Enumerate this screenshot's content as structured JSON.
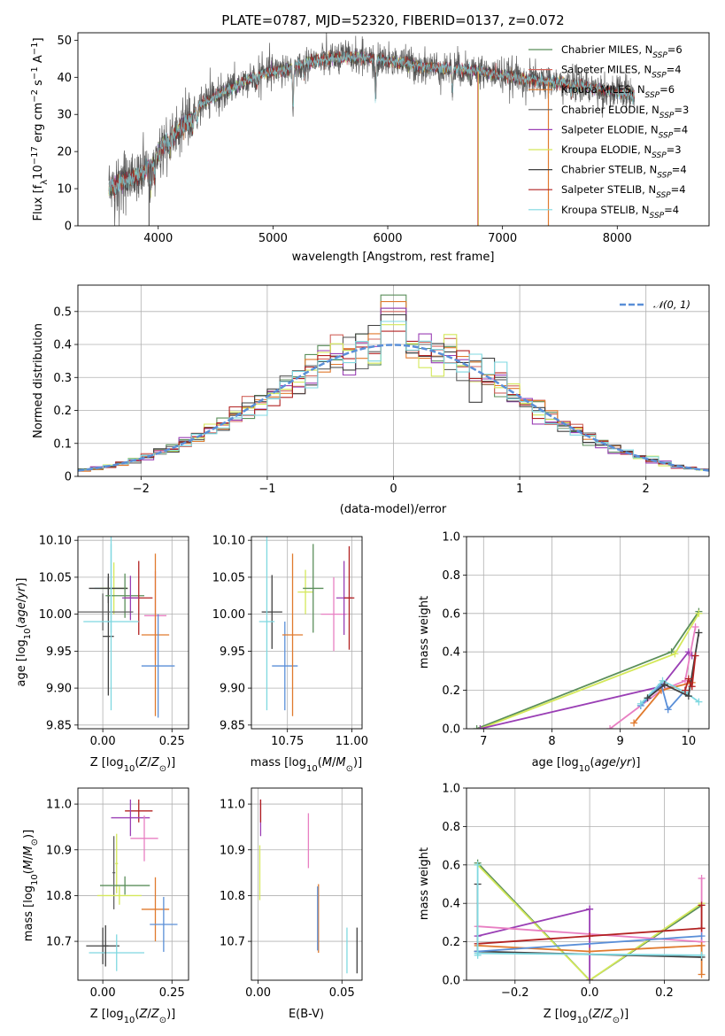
{
  "chart_data": [
    {
      "id": "spectrum",
      "type": "line",
      "title": "PLATE=0787, MJD=52320, FIBERID=0137, z=0.072",
      "xlabel": "wavelength [Angstrom, rest frame]",
      "ylabel": "Flux [f$_\\lambda$10$^{-17}$ erg cm$^{-2}$ s$^{-1}$ A$^{-1}$]",
      "xlim": [
        3300,
        8800
      ],
      "ylim": [
        0,
        52
      ],
      "xticks": [
        4000,
        5000,
        6000,
        7000,
        8000
      ],
      "yticks": [
        0,
        10,
        20,
        30,
        40,
        50
      ],
      "grid": false,
      "legend_position": "top-right",
      "data_range": [
        3570,
        8150
      ],
      "continuum": {
        "x": [
          3570,
          3700,
          3850,
          3950,
          4050,
          4200,
          4350,
          4500,
          4700,
          4900,
          5100,
          5300,
          5500,
          5700,
          5900,
          6100,
          6300,
          6500,
          6700,
          6900,
          7100,
          7300,
          7500,
          7700,
          7900,
          8150
        ],
        "y": [
          10,
          12,
          14,
          17,
          22,
          26,
          32,
          35,
          38,
          41,
          42,
          44,
          45,
          45.5,
          45,
          44,
          43,
          42.5,
          42,
          41,
          40,
          39,
          38.5,
          37.5,
          36.5,
          35
        ]
      },
      "absorption_lines": [
        {
          "x": 3934,
          "depth": 6
        },
        {
          "x": 3969,
          "depth": 5
        },
        {
          "x": 4102,
          "depth": 3
        },
        {
          "x": 4300,
          "depth": 4
        },
        {
          "x": 4340,
          "depth": 3
        },
        {
          "x": 4861,
          "depth": 3
        },
        {
          "x": 5175,
          "depth": 10
        },
        {
          "x": 5270,
          "depth": 3
        },
        {
          "x": 5893,
          "depth": 10
        },
        {
          "x": 6563,
          "depth": 5
        },
        {
          "x": 7600,
          "depth": 3
        }
      ],
      "drop_lines": [
        {
          "series": "Kroupa ELODIE",
          "x": 6790
        },
        {
          "series": "Salpeter MILES",
          "x": 6785
        },
        {
          "series": "Kroupa MILES",
          "x": 7400
        },
        {
          "series": "Chabrier ELODIE",
          "x": 3920
        }
      ],
      "series": [
        {
          "name": "Chabrier MILES",
          "nssp": "6",
          "color": "#5b8f5b"
        },
        {
          "name": "Salpeter MILES",
          "nssp": "4",
          "color": "#d1655d"
        },
        {
          "name": "Kroupa MILES",
          "nssp": "6",
          "color": "#e07a2e"
        },
        {
          "name": "Chabrier ELODIE",
          "nssp": "3",
          "color": "#606060"
        },
        {
          "name": "Salpeter ELODIE",
          "nssp": "4",
          "color": "#9a3fb5"
        },
        {
          "name": "Kroupa ELODIE",
          "nssp": "3",
          "color": "#d4e85a"
        },
        {
          "name": "Chabrier STELIB",
          "nssp": "4",
          "color": "#404040"
        },
        {
          "name": "Salpeter STELIB",
          "nssp": "4",
          "color": "#b22222"
        },
        {
          "name": "Kroupa STELIB",
          "nssp": "4",
          "color": "#7fd8e0"
        }
      ],
      "legend_labels": [
        {
          "prefix": "Chabrier MILES, N",
          "sub": "SSP",
          "suffix": "=6"
        },
        {
          "prefix": "Salpeter MILES, N",
          "sub": "SSP",
          "suffix": "=4"
        },
        {
          "prefix": "Kroupa MILES, N",
          "sub": "SSP",
          "suffix": "=6"
        },
        {
          "prefix": "Chabrier ELODIE, N",
          "sub": "SSP",
          "suffix": "=3"
        },
        {
          "prefix": "Salpeter ELODIE, N",
          "sub": "SSP",
          "suffix": "=4"
        },
        {
          "prefix": "Kroupa ELODIE, N",
          "sub": "SSP",
          "suffix": "=3"
        },
        {
          "prefix": "Chabrier STELIB, N",
          "sub": "SSP",
          "suffix": "=4"
        },
        {
          "prefix": "Salpeter STELIB, N",
          "sub": "SSP",
          "suffix": "=4"
        },
        {
          "prefix": "Kroupa STELIB, N",
          "sub": "SSP",
          "suffix": "=4"
        }
      ]
    },
    {
      "id": "residuals",
      "type": "line",
      "xlabel": "(data-model)/error",
      "ylabel": "Normed distribution",
      "xlim": [
        -2.5,
        2.5
      ],
      "ylim": [
        0,
        0.58
      ],
      "xticks": [
        -2,
        -1,
        0,
        1,
        2
      ],
      "yticks": [
        0.0,
        0.1,
        0.2,
        0.3,
        0.4,
        0.5
      ],
      "grid": true,
      "legend_position": "top-right",
      "legend": "$\\mathcal{N}(0,1)$",
      "gaussian": {
        "mean": 0,
        "sigma": 1,
        "color": "#5a8fd8"
      },
      "histogram": {
        "bin_width": 0.1,
        "bin_start": -2.5,
        "bin_end": 2.5,
        "note_series": "9 models, same colors as spectrum"
      },
      "peak_values": {
        "x": [
          0.0,
          0.1,
          0.3
        ],
        "y": [
          0.55,
          0.51,
          0.48
        ]
      }
    },
    {
      "id": "age_vs_Z",
      "type": "scatter",
      "xlabel": "Z [log$_{10}$($Z/Z_\\odot$)]",
      "ylabel": "age  [log$_{10}$($age/yr$)]",
      "xlim": [
        -0.09,
        0.31
      ],
      "ylim": [
        9.845,
        10.105
      ],
      "xticks": [
        "0.00",
        "0.25"
      ],
      "yticks": [
        "9.85",
        "9.90",
        "9.95",
        "10.00",
        "10.05",
        "10.10"
      ],
      "grid": true,
      "points": [
        {
          "x": 0.03,
          "y": 10.035,
          "xerr": 0.06,
          "yerr": 0.06,
          "color": "#7fd8e0"
        },
        {
          "x": 0.04,
          "y": 10.035,
          "xerr": 0.05,
          "yerr": 0.035,
          "color": "#d4e85a"
        },
        {
          "x": 0.02,
          "y": 10.035,
          "xerr": 0.07,
          "yerr": 0.02,
          "color": "#404040"
        },
        {
          "x": 0.02,
          "y": 9.97,
          "xerr": 0.02,
          "yerr": 0.08,
          "color": "#404040"
        },
        {
          "x": 0.08,
          "y": 10.025,
          "xerr": 0.07,
          "yerr": 0.03,
          "color": "#5b8f5b"
        },
        {
          "x": 0.13,
          "y": 10.022,
          "xerr": 0.05,
          "yerr": 0.05,
          "color": "#b22222"
        },
        {
          "x": 0.1,
          "y": 10.022,
          "xerr": 0.03,
          "yerr": 0.03,
          "color": "#9a3fb5"
        },
        {
          "x": 0.0,
          "y": 10.003,
          "xerr": 0.11,
          "yerr": 0.025,
          "color": "#606060"
        },
        {
          "x": 0.03,
          "y": 9.99,
          "xerr": 0.1,
          "yerr": 0.12,
          "color": "#7fd8e0"
        },
        {
          "x": 0.19,
          "y": 9.998,
          "xerr": 0.04,
          "yerr": 0.06,
          "color": "#e87fc2"
        },
        {
          "x": 0.19,
          "y": 9.972,
          "xerr": 0.05,
          "yerr": 0.11,
          "color": "#e07a2e"
        },
        {
          "x": 0.2,
          "y": 9.93,
          "xerr": 0.06,
          "yerr": 0.07,
          "color": "#5a8fd8"
        }
      ]
    },
    {
      "id": "age_vs_mass",
      "type": "scatter",
      "xlabel": "mass [log$_{10}$($M/M_\\odot$)]",
      "ylabel": "",
      "xlim": [
        10.61,
        11.04
      ],
      "ylim": [
        9.845,
        10.105
      ],
      "xticks": [
        "10.75",
        "11.00"
      ],
      "yticks": [
        "9.85",
        "9.90",
        "9.95",
        "10.00",
        "10.05",
        "10.10"
      ],
      "grid": true,
      "points": [
        {
          "x": 10.69,
          "y": 10.003,
          "xerr": 0.04,
          "yerr": 0.05,
          "color": "#404040"
        },
        {
          "x": 10.67,
          "y": 9.99,
          "xerr": 0.03,
          "yerr": 0.12,
          "color": "#7fd8e0"
        },
        {
          "x": 10.74,
          "y": 9.93,
          "xerr": 0.05,
          "yerr": 0.06,
          "color": "#5a8fd8"
        },
        {
          "x": 10.77,
          "y": 9.972,
          "xerr": 0.04,
          "yerr": 0.11,
          "color": "#e07a2e"
        },
        {
          "x": 10.82,
          "y": 10.03,
          "xerr": 0.03,
          "yerr": 0.03,
          "color": "#d4e85a"
        },
        {
          "x": 10.85,
          "y": 10.035,
          "xerr": 0.04,
          "yerr": 0.06,
          "color": "#5b8f5b"
        },
        {
          "x": 10.93,
          "y": 10.0,
          "xerr": 0.05,
          "yerr": 0.05,
          "color": "#e87fc2"
        },
        {
          "x": 10.97,
          "y": 10.022,
          "xerr": 0.03,
          "yerr": 0.05,
          "color": "#9a3fb5"
        },
        {
          "x": 10.99,
          "y": 10.022,
          "xerr": 0.02,
          "yerr": 0.07,
          "color": "#b22222"
        }
      ]
    },
    {
      "id": "weight_vs_age",
      "type": "line",
      "xlabel": "age  [log$_{10}$($age/yr$)]",
      "ylabel": "mass weight",
      "xlim": [
        6.75,
        10.3
      ],
      "ylim": [
        0,
        1
      ],
      "xticks": [
        7,
        8,
        9,
        10
      ],
      "yticks": [
        "0.0",
        "0.2",
        "0.4",
        "0.6",
        "0.8",
        "1.0"
      ],
      "grid": true,
      "series": [
        {
          "color": "#5b8f5b",
          "x": [
            6.9,
            9.75,
            10.15
          ],
          "y": [
            0.0,
            0.4,
            0.61
          ]
        },
        {
          "color": "#d4e85a",
          "x": [
            6.95,
            9.8,
            10.15
          ],
          "y": [
            0.0,
            0.39,
            0.6
          ]
        },
        {
          "color": "#9a3fb5",
          "x": [
            6.95,
            9.6,
            10.0,
            10.05
          ],
          "y": [
            0.0,
            0.22,
            0.4,
            0.38
          ]
        },
        {
          "color": "#e87fc2",
          "x": [
            8.85,
            9.6,
            9.95,
            10.1
          ],
          "y": [
            0.0,
            0.2,
            0.25,
            0.53
          ]
        },
        {
          "color": "#e07a2e",
          "x": [
            9.2,
            9.6,
            10.05
          ],
          "y": [
            0.03,
            0.2,
            0.24
          ]
        },
        {
          "color": "#5a8fd8",
          "x": [
            9.3,
            9.6,
            9.7,
            9.95
          ],
          "y": [
            0.12,
            0.23,
            0.1,
            0.2
          ]
        },
        {
          "color": "#7fd8e0",
          "x": [
            9.3,
            9.62,
            9.95,
            10.15
          ],
          "y": [
            0.13,
            0.25,
            0.19,
            0.14
          ]
        },
        {
          "color": "#404040",
          "x": [
            9.4,
            9.65,
            10.0,
            10.15
          ],
          "y": [
            0.16,
            0.23,
            0.17,
            0.5
          ]
        },
        {
          "color": "#b22222",
          "x": [
            9.95,
            10.0,
            10.05,
            10.1
          ],
          "y": [
            0.2,
            0.26,
            0.22,
            0.38
          ]
        }
      ]
    },
    {
      "id": "mass_vs_Z",
      "type": "scatter",
      "xlabel": "Z [log$_{10}$($Z/Z_\\odot$)]",
      "ylabel": "mass [log$_{10}$($M/M_\\odot$)]",
      "xlim": [
        -0.09,
        0.31
      ],
      "ylim": [
        10.615,
        11.035
      ],
      "xticks": [
        "0.00",
        "0.25"
      ],
      "yticks": [
        "10.7",
        "10.8",
        "10.9",
        "11.0"
      ],
      "grid": true,
      "points": [
        {
          "x": 0.13,
          "y": 10.985,
          "xerr": 0.05,
          "yerr": 0.025,
          "color": "#b22222"
        },
        {
          "x": 0.1,
          "y": 10.97,
          "xerr": 0.07,
          "yerr": 0.04,
          "color": "#9a3fb5"
        },
        {
          "x": 0.15,
          "y": 10.925,
          "xerr": 0.05,
          "yerr": 0.05,
          "color": "#e87fc2"
        },
        {
          "x": 0.04,
          "y": 10.85,
          "xerr": 0.005,
          "yerr": 0.08,
          "color": "#606060"
        },
        {
          "x": 0.05,
          "y": 10.87,
          "xerr": 0.005,
          "yerr": 0.065,
          "color": "#d4e85a"
        },
        {
          "x": 0.08,
          "y": 10.822,
          "xerr": 0.09,
          "yerr": 0.02,
          "color": "#5b8f5b"
        },
        {
          "x": 0.06,
          "y": 10.8,
          "xerr": 0.08,
          "yerr": 0.02,
          "color": "#d4e85a"
        },
        {
          "x": 0.19,
          "y": 10.77,
          "xerr": 0.05,
          "yerr": 0.07,
          "color": "#e07a2e"
        },
        {
          "x": 0.22,
          "y": 10.737,
          "xerr": 0.05,
          "yerr": 0.06,
          "color": "#5a8fd8"
        },
        {
          "x": 0.0,
          "y": 10.69,
          "xerr": 0.06,
          "yerr": 0.04,
          "color": "#404040"
        },
        {
          "x": 0.05,
          "y": 10.675,
          "xerr": 0.1,
          "yerr": 0.04,
          "color": "#7fd8e0"
        },
        {
          "x": 0.01,
          "y": 10.69,
          "xerr": 0.01,
          "yerr": 0.045,
          "color": "#404040"
        }
      ]
    },
    {
      "id": "mass_vs_EBV",
      "type": "scatter",
      "xlabel": "E(B-V)",
      "ylabel": "",
      "xlim": [
        -0.004,
        0.062
      ],
      "ylim": [
        10.615,
        11.035
      ],
      "xticks": [
        "0.00",
        "0.05"
      ],
      "yticks": [
        "10.7",
        "10.8",
        "10.9",
        "11.0"
      ],
      "grid": true,
      "points": [
        {
          "x": 0.0015,
          "y": 10.97,
          "yerr": 0.04,
          "color": "#9a3fb5"
        },
        {
          "x": 0.0015,
          "y": 10.985,
          "yerr": 0.025,
          "color": "#b22222"
        },
        {
          "x": 0.001,
          "y": 10.85,
          "yerr": 0.06,
          "color": "#d4e85a"
        },
        {
          "x": 0.03,
          "y": 10.92,
          "yerr": 0.06,
          "color": "#e87fc2"
        },
        {
          "x": 0.036,
          "y": 10.75,
          "yerr": 0.075,
          "color": "#e07a2e"
        },
        {
          "x": 0.0355,
          "y": 10.75,
          "yerr": 0.07,
          "color": "#5a8fd8"
        },
        {
          "x": 0.053,
          "y": 10.68,
          "yerr": 0.05,
          "color": "#7fd8e0"
        },
        {
          "x": 0.059,
          "y": 10.68,
          "yerr": 0.05,
          "color": "#404040"
        }
      ]
    },
    {
      "id": "weight_vs_Z",
      "type": "line",
      "xlabel": "Z [log$_{10}$($Z/Z_\\odot$)]",
      "ylabel": "mass weight",
      "xlim": [
        -0.33,
        0.32
      ],
      "ylim": [
        0,
        1
      ],
      "xticks": [
        "−0.2",
        "0.0",
        "0.2"
      ],
      "yticks": [
        "0.0",
        "0.2",
        "0.4",
        "0.6",
        "0.8",
        "1.0"
      ],
      "grid": true,
      "series": [
        {
          "color": "#5b8f5b",
          "x": [
            -0.3,
            0.0,
            0.3
          ],
          "y": [
            0.61,
            0.0,
            0.39
          ]
        },
        {
          "color": "#d4e85a",
          "x": [
            -0.3,
            0.0,
            0.3
          ],
          "y": [
            0.6,
            0.0,
            0.4
          ]
        },
        {
          "color": "#9a3fb5",
          "x": [
            -0.3,
            0.0
          ],
          "y": [
            0.23,
            0.37
          ]
        },
        {
          "color": "#9a3fb5",
          "x": [
            0.0,
            0.0
          ],
          "y": [
            0.37,
            0.0
          ]
        },
        {
          "color": "#e87fc2",
          "x": [
            -0.3,
            0.3
          ],
          "y": [
            0.28,
            0.2
          ]
        },
        {
          "color": "#e87fc2",
          "x": [
            0.3,
            0.3
          ],
          "y": [
            0.2,
            0.53
          ]
        },
        {
          "color": "#b22222",
          "x": [
            -0.3,
            0.0,
            0.3
          ],
          "y": [
            0.19,
            0.23,
            0.27
          ]
        },
        {
          "color": "#b22222",
          "x": [
            0.3,
            0.3
          ],
          "y": [
            0.27,
            0.39
          ]
        },
        {
          "color": "#e07a2e",
          "x": [
            -0.3,
            0.0,
            0.3
          ],
          "y": [
            0.18,
            0.15,
            0.18
          ]
        },
        {
          "color": "#e07a2e",
          "x": [
            0.3,
            0.3
          ],
          "y": [
            0.18,
            0.03
          ]
        },
        {
          "color": "#404040",
          "x": [
            -0.3,
            0.3
          ],
          "y": [
            0.15,
            0.12
          ]
        },
        {
          "color": "#404040",
          "x": [
            -0.3,
            -0.3
          ],
          "y": [
            0.5,
            0.15
          ]
        },
        {
          "color": "#5a8fd8",
          "x": [
            -0.3,
            0.3
          ],
          "y": [
            0.15,
            0.23
          ]
        },
        {
          "color": "#7fd8e0",
          "x": [
            -0.3,
            0.3
          ],
          "y": [
            0.14,
            0.13
          ]
        },
        {
          "color": "#7fd8e0",
          "x": [
            -0.3,
            -0.3
          ],
          "y": [
            0.13,
            0.6
          ]
        }
      ]
    }
  ]
}
